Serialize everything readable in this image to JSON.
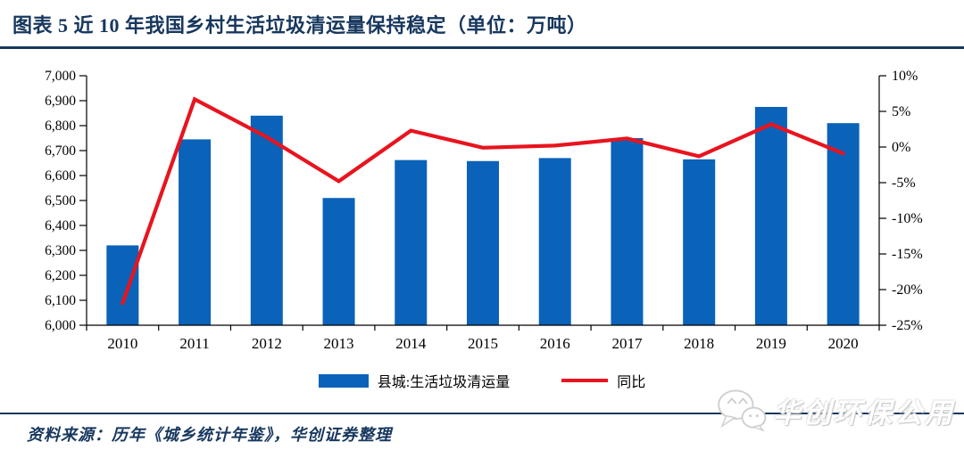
{
  "figure": {
    "title": "图表 5   近 10 年我国乡村生活垃圾清运量保持稳定（单位：万吨）",
    "source": "资料来源：历年《城乡统计年鉴》，华创证券整理",
    "watermark": "华创环保公用"
  },
  "colors": {
    "navy": "#17375e",
    "bar_blue": "#0a62b9",
    "line_red": "#e8141e",
    "axis_black": "#000000"
  },
  "chart_data": {
    "type": "bar",
    "subtype": "bar+line combo",
    "categories": [
      "2010",
      "2011",
      "2012",
      "2013",
      "2014",
      "2015",
      "2016",
      "2017",
      "2018",
      "2019",
      "2020"
    ],
    "series": [
      {
        "name": "县城:生活垃圾清运量",
        "type": "bar",
        "axis": "left",
        "values": [
          6320,
          6745,
          6840,
          6510,
          6662,
          6658,
          6670,
          6750,
          6665,
          6875,
          6810
        ]
      },
      {
        "name": "同比",
        "type": "line",
        "axis": "right",
        "values": [
          -21.9,
          6.7,
          1.4,
          -4.8,
          2.3,
          -0.1,
          0.2,
          1.2,
          -1.3,
          3.2,
          -0.9
        ]
      }
    ],
    "left_axis": {
      "min": 6000,
      "max": 7000,
      "step": 100,
      "tick_labels": [
        "7,000",
        "6,900",
        "6,800",
        "6,700",
        "6,600",
        "6,500",
        "6,400",
        "6,300",
        "6,200",
        "6,100",
        "6,000"
      ]
    },
    "right_axis": {
      "min": -25,
      "max": 10,
      "step": 5,
      "tick_labels": [
        "10%",
        "5%",
        "0%",
        "-5%",
        "-10%",
        "-15%",
        "-20%",
        "-25%"
      ]
    },
    "grid": false,
    "legend_position": "bottom"
  }
}
